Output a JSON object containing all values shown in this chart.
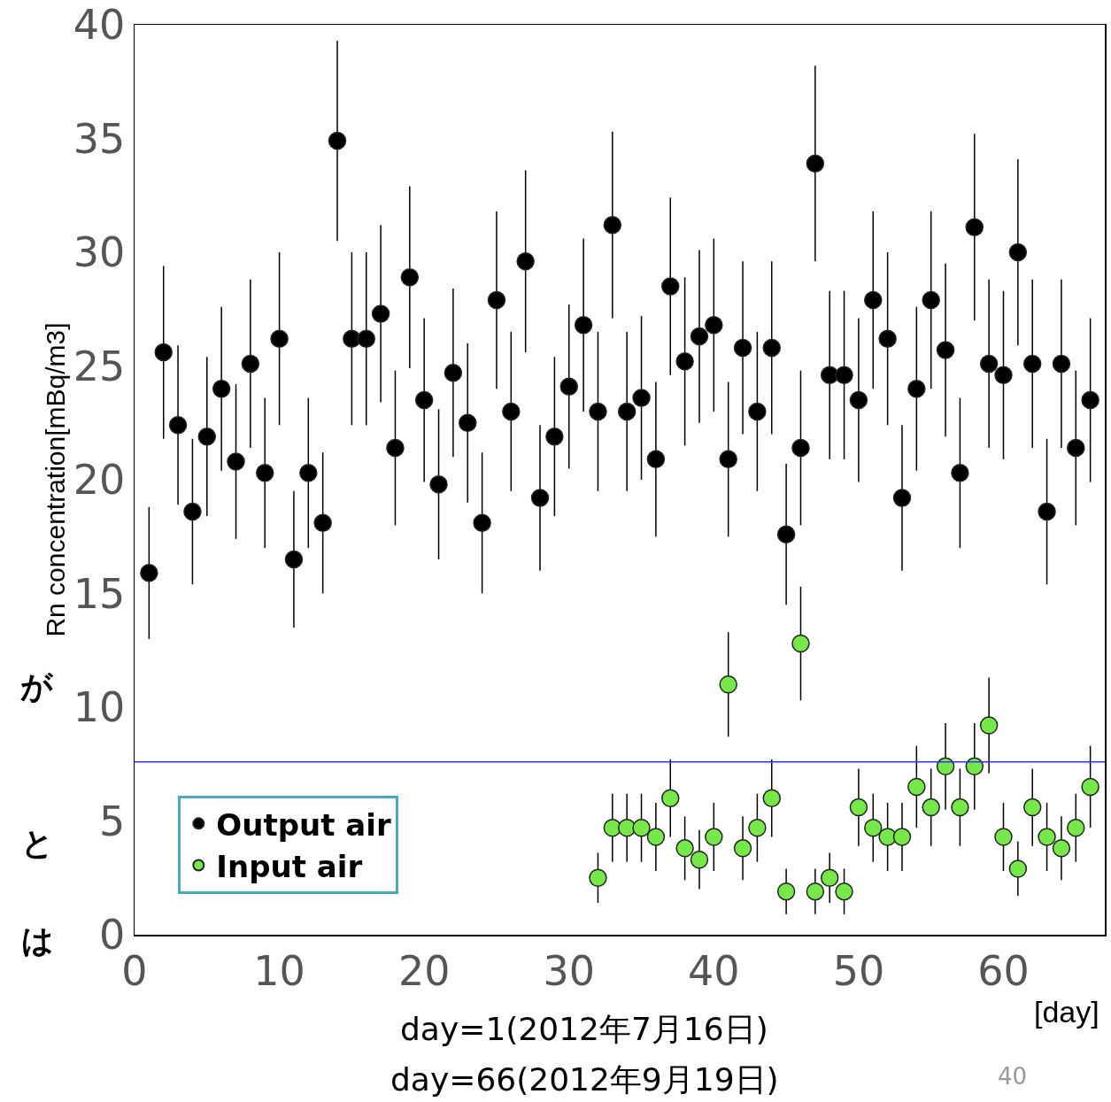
{
  "chart_data": {
    "type": "scatter",
    "xlabel": "[day]",
    "ylabel": "Rn concentration[mBq/m3]",
    "xlim": [
      0,
      67
    ],
    "xticks": [
      0,
      10,
      20,
      30,
      40,
      50,
      60
    ],
    "ylim": [
      0,
      40
    ],
    "yticks": [
      0,
      5,
      10,
      15,
      20,
      25,
      30,
      35,
      40
    ],
    "grid": false,
    "legend": "bottom left",
    "marker": "circle",
    "series": [
      {
        "name": "Output air",
        "color": "#000000",
        "x": [
          1,
          2,
          3,
          4,
          5,
          6,
          7,
          8,
          9,
          10,
          11,
          12,
          13,
          14,
          15,
          16,
          17,
          18,
          19,
          20,
          21,
          22,
          23,
          24,
          25,
          26,
          27,
          28,
          29,
          30,
          31,
          32,
          33,
          34,
          35,
          36,
          37,
          38,
          39,
          40,
          41,
          42,
          43,
          44,
          45,
          46,
          47,
          48,
          49,
          50,
          51,
          52,
          53,
          54,
          55,
          56,
          57,
          58,
          59,
          60,
          61,
          62,
          63,
          64,
          65,
          66
        ],
        "values": [
          15.9,
          25.6,
          22.4,
          18.6,
          21.9,
          24.0,
          20.8,
          25.1,
          20.3,
          26.2,
          16.5,
          20.3,
          18.1,
          34.9,
          26.2,
          26.2,
          27.3,
          21.4,
          28.9,
          23.5,
          19.8,
          24.7,
          22.5,
          18.1,
          27.9,
          23.0,
          29.6,
          19.2,
          21.9,
          24.1,
          26.8,
          23.0,
          31.2,
          23.0,
          23.6,
          20.9,
          28.5,
          25.2,
          26.3,
          26.8,
          20.9,
          25.8,
          23.0,
          25.8,
          17.6,
          21.4,
          33.9,
          24.6,
          24.6,
          23.5,
          27.9,
          26.2,
          19.2,
          24.0,
          27.9,
          25.7,
          20.3,
          31.1,
          25.1,
          24.6,
          30.0,
          25.1,
          18.6,
          25.1,
          21.4,
          23.5
        ],
        "errors": [
          2.9,
          3.8,
          3.5,
          3.2,
          3.5,
          3.6,
          3.4,
          3.7,
          3.3,
          3.8,
          3.0,
          3.3,
          3.1,
          4.4,
          3.8,
          3.8,
          3.9,
          3.4,
          4.0,
          3.6,
          3.3,
          3.7,
          3.5,
          3.1,
          3.9,
          3.5,
          4.0,
          3.2,
          3.5,
          3.6,
          3.8,
          3.5,
          4.1,
          3.5,
          3.6,
          3.4,
          3.9,
          3.7,
          3.8,
          3.8,
          3.4,
          3.8,
          3.5,
          3.8,
          3.1,
          3.4,
          4.3,
          3.7,
          3.7,
          3.6,
          3.9,
          3.8,
          3.2,
          3.6,
          3.9,
          3.8,
          3.3,
          4.1,
          3.7,
          3.7,
          4.1,
          3.7,
          3.2,
          3.7,
          3.4,
          3.6
        ]
      },
      {
        "name": "Input air",
        "color": "#77e84a",
        "x": [
          32,
          33,
          34,
          35,
          36,
          37,
          38,
          39,
          40,
          41,
          42,
          43,
          44,
          45,
          46,
          47,
          48,
          49,
          50,
          51,
          52,
          53,
          54,
          55,
          56,
          57,
          58,
          59,
          60,
          61,
          62,
          63,
          64,
          65,
          66
        ],
        "values": [
          2.5,
          4.7,
          4.7,
          4.7,
          4.3,
          6.0,
          3.8,
          3.3,
          4.3,
          11.0,
          3.8,
          4.7,
          6.0,
          1.9,
          12.8,
          1.9,
          2.5,
          1.9,
          5.6,
          4.7,
          4.3,
          4.3,
          6.5,
          5.6,
          7.4,
          5.6,
          7.4,
          9.2,
          4.3,
          2.9,
          5.6,
          4.3,
          3.8,
          4.7,
          6.5
        ],
        "errors": [
          1.1,
          1.5,
          1.5,
          1.5,
          1.5,
          1.7,
          1.4,
          1.3,
          1.5,
          2.3,
          1.4,
          1.5,
          1.7,
          1.0,
          2.5,
          1.0,
          1.1,
          1.0,
          1.7,
          1.5,
          1.5,
          1.5,
          1.8,
          1.7,
          1.9,
          1.7,
          1.9,
          2.1,
          1.5,
          1.2,
          1.7,
          1.5,
          1.4,
          1.5,
          1.8
        ]
      }
    ],
    "ref_lines": [
      {
        "axis": "y",
        "value": 7.6,
        "color": "#3333ff"
      }
    ],
    "annotations": [
      "が",
      "と",
      "は",
      "day=1(2012年7月16日)",
      "day=66(2012年9月19日)",
      "40"
    ]
  }
}
